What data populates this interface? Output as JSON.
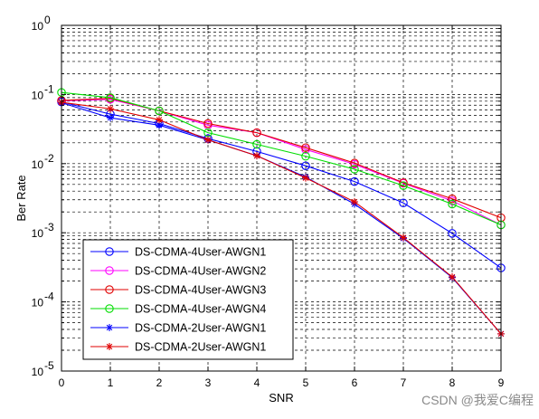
{
  "chart_data": {
    "type": "line",
    "title": "",
    "xlabel": "SNR",
    "ylabel": "Ber Rate",
    "x": [
      0,
      1,
      2,
      3,
      4,
      5,
      6,
      7,
      8,
      9
    ],
    "xlim": [
      0,
      9
    ],
    "ylim": [
      1e-05,
      1
    ],
    "yscale": "log",
    "grid": true,
    "legend_placement": "bottom-left",
    "x_tick_labels": [
      "0",
      "1",
      "2",
      "3",
      "4",
      "5",
      "6",
      "7",
      "8",
      "9"
    ],
    "y_ticks": [
      {
        "value": 1,
        "base": "10",
        "exp": "0"
      },
      {
        "value": 0.1,
        "base": "10",
        "exp": "-1"
      },
      {
        "value": 0.01,
        "base": "10",
        "exp": "-2"
      },
      {
        "value": 0.001,
        "base": "10",
        "exp": "-3"
      },
      {
        "value": 0.0001,
        "base": "10",
        "exp": "-4"
      },
      {
        "value": 1e-05,
        "base": "10",
        "exp": "-5"
      }
    ],
    "series": [
      {
        "name": "DS-CDMA-4User-AWGN1",
        "color": "#0000ff",
        "marker": "circle",
        "values": [
          0.078,
          0.052,
          0.038,
          0.023,
          0.015,
          0.0093,
          0.0055,
          0.0027,
          0.00098,
          0.00031
        ]
      },
      {
        "name": "DS-CDMA-4User-AWGN2",
        "color": "#ff00ff",
        "marker": "circle",
        "values": [
          0.081,
          0.085,
          0.058,
          0.036,
          0.028,
          0.016,
          0.0098,
          0.0052,
          0.0029,
          0.0013
        ]
      },
      {
        "name": "DS-CDMA-4User-AWGN3",
        "color": "#e00000",
        "marker": "circle",
        "values": [
          0.082,
          0.088,
          0.058,
          0.038,
          0.028,
          0.017,
          0.0102,
          0.0053,
          0.0031,
          0.00165
        ]
      },
      {
        "name": "DS-CDMA-4User-AWGN4",
        "color": "#00dd00",
        "marker": "circle",
        "values": [
          0.107,
          0.09,
          0.058,
          0.028,
          0.019,
          0.0128,
          0.0083,
          0.0048,
          0.0026,
          0.0013
        ]
      },
      {
        "name": "DS-CDMA-2User-AWGN1",
        "color": "#0000ff",
        "marker": "star",
        "values": [
          0.076,
          0.046,
          0.036,
          0.022,
          0.013,
          0.0064,
          0.0026,
          0.00083,
          0.000225,
          3.45e-05
        ]
      },
      {
        "name": "DS-CDMA-2User-AWGN1",
        "color": "#e00000",
        "marker": "star",
        "values": [
          0.077,
          0.062,
          0.043,
          0.022,
          0.013,
          0.0062,
          0.0028,
          0.00085,
          0.00023,
          3.45e-05
        ]
      }
    ]
  },
  "watermark": {
    "text": "CSDN @我爱C编程"
  }
}
